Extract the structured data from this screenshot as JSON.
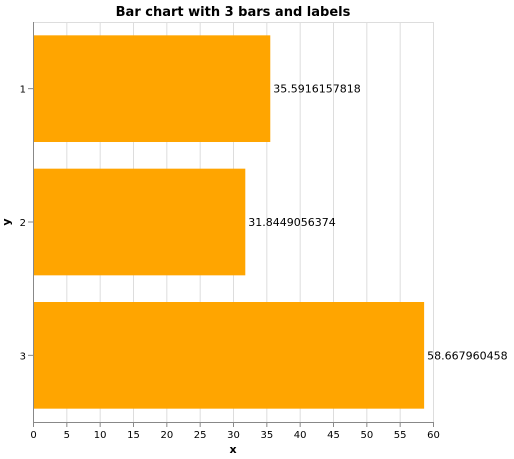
{
  "chart_data": {
    "type": "bar",
    "orientation": "horizontal",
    "title": "Bar chart with 3 bars and labels",
    "xlabel": "x",
    "ylabel": "y",
    "categories": [
      "1",
      "2",
      "3"
    ],
    "values": [
      35.5916157818,
      31.8449056374,
      58.667960458
    ],
    "labels": [
      "35.5916157818",
      "31.8449056374",
      "58.667960458"
    ],
    "xlim": [
      0,
      60
    ],
    "xticks": [
      0,
      5,
      10,
      15,
      20,
      25,
      30,
      35,
      40,
      45,
      50,
      55,
      60
    ],
    "grid": true,
    "bar_color": "#ffa500"
  }
}
